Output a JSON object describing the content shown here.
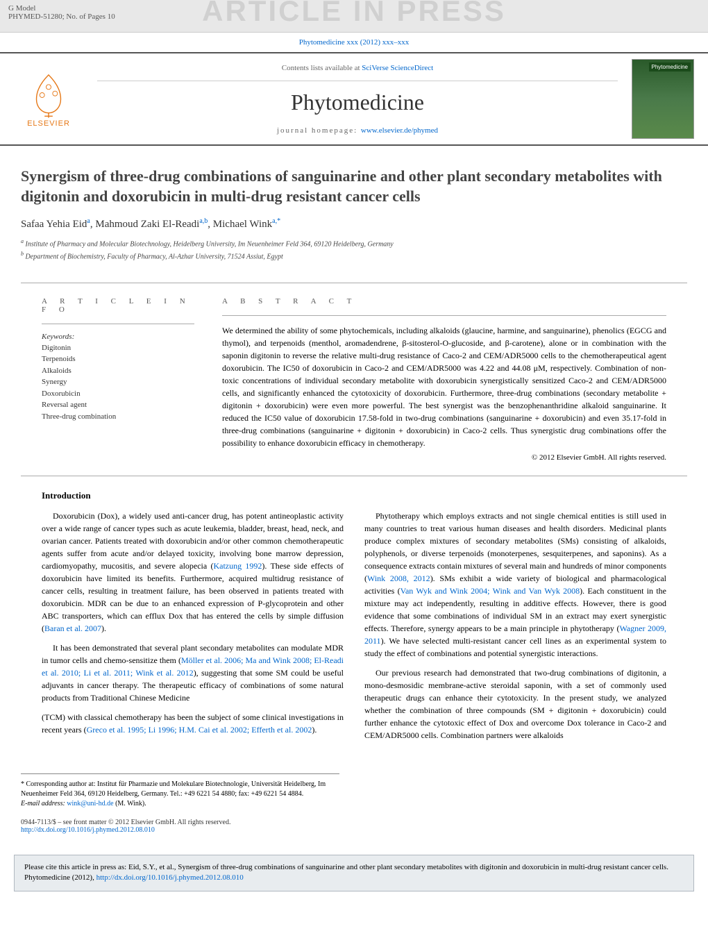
{
  "topbar": {
    "gmodel": "G Model",
    "code": "PHYMED-51280;   No. of Pages 10",
    "banner": "ARTICLE IN PRESS"
  },
  "citeline": "Phytomedicine xxx (2012) xxx–xxx",
  "header": {
    "contents_prefix": "Contents lists available at ",
    "contents_link": "SciVerse ScienceDirect",
    "journal": "Phytomedicine",
    "homepage_prefix": "journal homepage: ",
    "homepage_url": "www.elsevier.de/phymed",
    "elsevier": "ELSEVIER",
    "cover_label": "Phytomedicine"
  },
  "title": "Synergism of three-drug combinations of sanguinarine and other plant secondary metabolites with digitonin and doxorubicin in multi-drug resistant cancer cells",
  "authors_html": "Safaa Yehia Eid<sup>a</sup>, Mahmoud Zaki El-Readi<sup>a,b</sup>, Michael Wink<sup>a,*</sup>",
  "affiliations": [
    "a Institute of Pharmacy and Molecular Biotechnology, Heidelberg University, Im Neuenheimer Feld 364, 69120 Heidelberg, Germany",
    "b Department of Biochemistry, Faculty of Pharmacy, Al-Azhar University, 71524 Assiut, Egypt"
  ],
  "article_info": {
    "header": "A R T I C L E   I N F O",
    "keywords_label": "Keywords:",
    "keywords": [
      "Digitonin",
      "Terpenoids",
      "Alkaloids",
      "Synergy",
      "Doxorubicin",
      "Reversal agent",
      "Three-drug combination"
    ]
  },
  "abstract": {
    "header": "A B S T R A C T",
    "text": "We determined the ability of some phytochemicals, including alkaloids (glaucine, harmine, and sanguinarine), phenolics (EGCG and thymol), and terpenoids (menthol, aromadendrene, β-sitosterol-O-glucoside, and β-carotene), alone or in combination with the saponin digitonin to reverse the relative multi-drug resistance of Caco-2 and CEM/ADR5000 cells to the chemotherapeutical agent doxorubicin. The IC50 of doxorubicin in Caco-2 and CEM/ADR5000 was 4.22 and 44.08 μM, respectively. Combination of non-toxic concentrations of individual secondary metabolite with doxorubicin synergistically sensitized Caco-2 and CEM/ADR5000 cells, and significantly enhanced the cytotoxicity of doxorubicin. Furthermore, three-drug combinations (secondary metabolite + digitonin + doxorubicin) were even more powerful. The best synergist was the benzophenanthridine alkaloid sanguinarine. It reduced the IC50 value of doxorubicin 17.58-fold in two-drug combinations (sanguinarine + doxorubicin) and even 35.17-fold in three-drug combinations (sanguinarine + digitonin + doxorubicin) in Caco-2 cells. Thus synergistic drug combinations offer the possibility to enhance doxorubicin efficacy in chemotherapy.",
    "copyright": "© 2012 Elsevier GmbH. All rights reserved."
  },
  "intro": {
    "heading": "Introduction",
    "p1": "Doxorubicin (Dox), a widely used anti-cancer drug, has potent antineoplastic activity over a wide range of cancer types such as acute leukemia, bladder, breast, head, neck, and ovarian cancer. Patients treated with doxorubicin and/or other common chemotherapeutic agents suffer from acute and/or delayed toxicity, involving bone marrow depression, cardiomyopathy, mucositis, and severe alopecia (",
    "p1_cite": "Katzung 1992",
    "p1_cont": "). These side effects of doxorubicin have limited its benefits. Furthermore, acquired multidrug resistance of cancer cells, resulting in treatment failure, has been observed in patients treated with doxorubicin. MDR can be due to an enhanced expression of P-glycoprotein and other ABC transporters, which can efflux Dox that has entered the cells by simple diffusion (",
    "p1_cite2": "Baran et al. 2007",
    "p1_end": ").",
    "p2": "It has been demonstrated that several plant secondary metabolites can modulate MDR in tumor cells and chemo-sensitize them (",
    "p2_cite": "Möller et al. 2006; Ma and Wink 2008; El-Readi et al. 2010; Li et al. 2011; Wink et al. 2012",
    "p2_cont": "), suggesting that some SM could be useful adjuvants in cancer therapy. The therapeutic efficacy of combinations of some natural products from Traditional Chinese Medicine",
    "p3": "(TCM) with classical chemotherapy has been the subject of some clinical investigations in recent years (",
    "p3_cite": "Greco et al. 1995; Li 1996; H.M. Cai et al. 2002; Efferth et al. 2002",
    "p3_end": ").",
    "p4": "Phytotherapy which employs extracts and not single chemical entities is still used in many countries to treat various human diseases and health disorders. Medicinal plants produce complex mixtures of secondary metabolites (SMs) consisting of alkaloids, polyphenols, or diverse terpenoids (monoterpenes, sesquiterpenes, and saponins). As a consequence extracts contain mixtures of several main and hundreds of minor components (",
    "p4_cite": "Wink 2008, 2012",
    "p4_cont": "). SMs exhibit a wide variety of biological and pharmacological activities (",
    "p4_cite2": "Van Wyk and Wink 2004; Wink and Van Wyk 2008",
    "p4_cont2": "). Each constituent in the mixture may act independently, resulting in additive effects. However, there is good evidence that some combinations of individual SM in an extract may exert synergistic effects. Therefore, synergy appears to be a main principle in phytotherapy (",
    "p4_cite3": "Wagner 2009, 2011",
    "p4_end": "). We have selected multi-resistant cancer cell lines as an experimental system to study the effect of combinations and potential synergistic interactions.",
    "p5": "Our previous research had demonstrated that two-drug combinations of digitonin, a mono-desmosidic membrane-active steroidal saponin, with a set of commonly used therapeutic drugs can enhance their cytotoxicity. In the present study, we analyzed whether the combination of three compounds (SM + digitonin + doxorubicin) could further enhance the cytotoxic effect of Dox and overcome Dox tolerance in Caco-2 and CEM/ADR5000 cells. Combination partners were alkaloids"
  },
  "footnotes": {
    "corr": "* Corresponding author at: Institut für Pharmazie und Molekulare Biotechnologie, Universität Heidelberg, Im Neuenheimer Feld 364, 69120 Heidelberg, Germany. Tel.: +49 6221 54 4880; fax: +49 6221 54 4884.",
    "email_label": "E-mail address: ",
    "email": "wink@uni-hd.de",
    "email_suffix": " (M. Wink)."
  },
  "copyright_footer": {
    "line1": "0944-7113/$ – see front matter © 2012 Elsevier GmbH. All rights reserved.",
    "doi": "http://dx.doi.org/10.1016/j.phymed.2012.08.010"
  },
  "citebox": {
    "text": "Please cite this article in press as: Eid, S.Y., et al., Synergism of three-drug combinations of sanguinarine and other plant secondary metabolites with digitonin and doxorubicin in multi-drug resistant cancer cells. Phytomedicine (2012), ",
    "link": "http://dx.doi.org/10.1016/j.phymed.2012.08.010"
  },
  "colors": {
    "link": "#0066cc",
    "orange": "#e67817",
    "banner_gray": "#d0d0d0",
    "topbar_bg": "#e8e8e8",
    "citebox_bg": "#e8ecef"
  }
}
